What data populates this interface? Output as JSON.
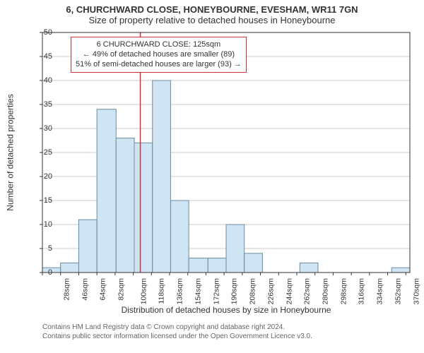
{
  "title": "6, CHURCHWARD CLOSE, HONEYBOURNE, EVESHAM, WR11 7GN",
  "subtitle": "Size of property relative to detached houses in Honeybourne",
  "ylabel": "Number of detached properties",
  "xlabel": "Distribution of detached houses by size in Honeybourne",
  "footnote_line1": "Contains HM Land Registry data © Crown copyright and database right 2024.",
  "footnote_line2": "Contains public sector information licensed under the Open Government Licence v3.0.",
  "chart": {
    "type": "histogram",
    "background_color": "#ffffff",
    "plot_border_color": "#333333",
    "grid_color": "#cccccc",
    "bar_fill": "#cfe5f3",
    "bar_stroke": "#6a8aa0",
    "bar_stroke_width": 1,
    "ylim": [
      0,
      50
    ],
    "ytick_step": 5,
    "xlim": [
      28,
      392
    ],
    "xtick_step": 18,
    "xtick_unit": "sqm",
    "bar_bin_width": 18,
    "bars": [
      {
        "x0": 28,
        "x1": 46,
        "count": 1
      },
      {
        "x0": 46,
        "x1": 64,
        "count": 2
      },
      {
        "x0": 64,
        "x1": 82,
        "count": 11
      },
      {
        "x0": 82,
        "x1": 101,
        "count": 34
      },
      {
        "x0": 101,
        "x1": 119,
        "count": 28
      },
      {
        "x0": 119,
        "x1": 137,
        "count": 27
      },
      {
        "x0": 137,
        "x1": 155,
        "count": 40
      },
      {
        "x0": 155,
        "x1": 173,
        "count": 15
      },
      {
        "x0": 173,
        "x1": 192,
        "count": 3
      },
      {
        "x0": 192,
        "x1": 210,
        "count": 3
      },
      {
        "x0": 210,
        "x1": 228,
        "count": 10
      },
      {
        "x0": 228,
        "x1": 246,
        "count": 4
      },
      {
        "x0": 246,
        "x1": 265,
        "count": 0
      },
      {
        "x0": 265,
        "x1": 283,
        "count": 0
      },
      {
        "x0": 283,
        "x1": 301,
        "count": 2
      },
      {
        "x0": 301,
        "x1": 319,
        "count": 0
      },
      {
        "x0": 319,
        "x1": 337,
        "count": 0
      },
      {
        "x0": 337,
        "x1": 356,
        "count": 0
      },
      {
        "x0": 356,
        "x1": 374,
        "count": 0
      },
      {
        "x0": 374,
        "x1": 392,
        "count": 1
      }
    ],
    "marker": {
      "x": 125,
      "color": "#cc3333",
      "line_width": 1.5
    },
    "annotation": {
      "border_color": "#cc3333",
      "bg_color": "#ffffff",
      "font_size": 11,
      "line1": "6 CHURCHWARD CLOSE: 125sqm",
      "line2": "← 49% of detached houses are smaller (89)",
      "line3": "51% of semi-detached houses are larger (93) →"
    }
  }
}
